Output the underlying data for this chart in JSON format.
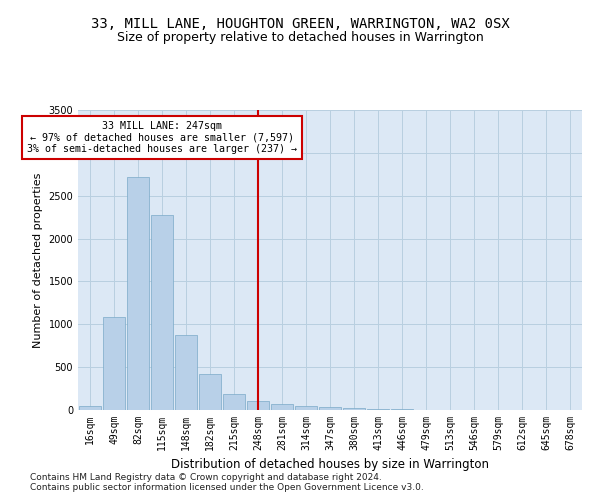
{
  "title": "33, MILL LANE, HOUGHTON GREEN, WARRINGTON, WA2 0SX",
  "subtitle": "Size of property relative to detached houses in Warrington",
  "xlabel": "Distribution of detached houses by size in Warrington",
  "ylabel": "Number of detached properties",
  "categories": [
    "16sqm",
    "49sqm",
    "82sqm",
    "115sqm",
    "148sqm",
    "182sqm",
    "215sqm",
    "248sqm",
    "281sqm",
    "314sqm",
    "347sqm",
    "380sqm",
    "413sqm",
    "446sqm",
    "479sqm",
    "513sqm",
    "546sqm",
    "579sqm",
    "612sqm",
    "645sqm",
    "678sqm"
  ],
  "values": [
    50,
    1080,
    2720,
    2280,
    870,
    420,
    185,
    110,
    75,
    50,
    30,
    20,
    15,
    8,
    5,
    3,
    2,
    2,
    1,
    1,
    1
  ],
  "bar_color": "#b8d0e8",
  "bar_edge_color": "#7aaac8",
  "property_label": "33 MILL LANE: 247sqm",
  "annotation_line1": "← 97% of detached houses are smaller (7,597)",
  "annotation_line2": "3% of semi-detached houses are larger (237) →",
  "vline_color": "#cc0000",
  "vline_bin_index": 7,
  "annotation_box_color": "#ffffff",
  "annotation_box_edge": "#cc0000",
  "background_color": "#ffffff",
  "plot_bg_color": "#dce8f5",
  "grid_color": "#b8cfe0",
  "ylim": [
    0,
    3500
  ],
  "yticks": [
    0,
    500,
    1000,
    1500,
    2000,
    2500,
    3000,
    3500
  ],
  "title_fontsize": 10,
  "subtitle_fontsize": 9,
  "xlabel_fontsize": 8.5,
  "ylabel_fontsize": 8,
  "tick_fontsize": 7,
  "footer_fontsize": 6.5,
  "footer1": "Contains HM Land Registry data © Crown copyright and database right 2024.",
  "footer2": "Contains public sector information licensed under the Open Government Licence v3.0."
}
